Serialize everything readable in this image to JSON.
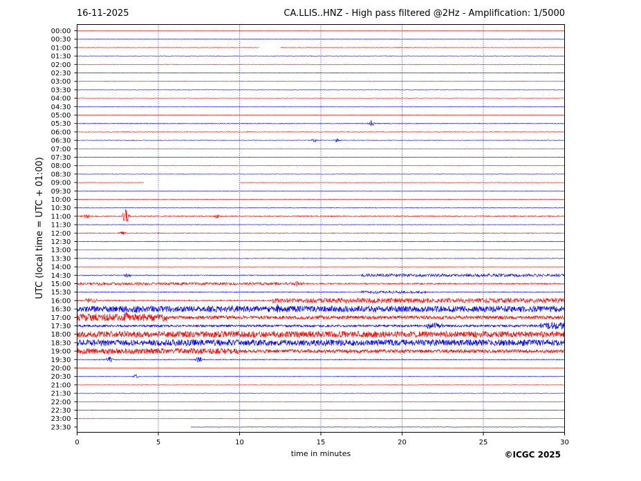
{
  "header": {
    "date": "16-11-2025",
    "title": "CA.LLIS..HNZ - High pass filtered @2Hz - Amplification: 1/5000"
  },
  "footer": {
    "copyright": "©ICGC 2025"
  },
  "colors": {
    "odd_trace": "#ff0000",
    "even_trace": "#0000ff",
    "grid": "#00008b"
  },
  "chart_data": {
    "type": "line",
    "title": "CA.LLIS..HNZ - High pass filtered @2Hz - Amplification: 1/5000",
    "xlabel": "time in minutes",
    "ylabel": "UTC (local time = UTC + 01:00)",
    "xlim": [
      0,
      30
    ],
    "x_ticks": [
      "0",
      "5",
      "10",
      "15",
      "20",
      "25",
      "30"
    ],
    "grid": "vertical dotted at 5-minute intervals",
    "rows": [
      {
        "label": "00:00",
        "color": "red",
        "noise": 0.3
      },
      {
        "label": "00:30",
        "color": "blue",
        "noise": 0.3
      },
      {
        "label": "01:00",
        "color": "red",
        "noise": 0.3,
        "gaps": [
          [
            11.2,
            12.5
          ]
        ]
      },
      {
        "label": "01:30",
        "color": "blue",
        "noise": 0.3
      },
      {
        "label": "02:00",
        "color": "red",
        "noise": 0.3
      },
      {
        "label": "02:30",
        "color": "blue",
        "noise": 0.3
      },
      {
        "label": "03:00",
        "color": "red",
        "noise": 0.3
      },
      {
        "label": "03:30",
        "color": "blue",
        "noise": 0.3
      },
      {
        "label": "04:00",
        "color": "red",
        "noise": 0.3
      },
      {
        "label": "04:30",
        "color": "blue",
        "noise": 0.3
      },
      {
        "label": "05:00",
        "color": "red",
        "noise": 0.3
      },
      {
        "label": "05:30",
        "color": "blue",
        "noise": 0.5,
        "events": [
          [
            18.1,
            5
          ]
        ]
      },
      {
        "label": "06:00",
        "color": "red",
        "noise": 0.4
      },
      {
        "label": "06:30",
        "color": "blue",
        "noise": 0.4,
        "events": [
          [
            14.6,
            3
          ],
          [
            16.0,
            3
          ]
        ]
      },
      {
        "label": "07:00",
        "color": "red",
        "noise": 0.3
      },
      {
        "label": "07:30",
        "color": "blue",
        "noise": 0.3
      },
      {
        "label": "08:00",
        "color": "red",
        "noise": 0.3
      },
      {
        "label": "08:30",
        "color": "blue",
        "noise": 0.3
      },
      {
        "label": "09:00",
        "color": "red",
        "noise": 0.3,
        "gaps": [
          [
            4.1,
            10.0
          ]
        ]
      },
      {
        "label": "09:30",
        "color": "blue",
        "noise": 0.3
      },
      {
        "label": "10:00",
        "color": "red",
        "noise": 0.4
      },
      {
        "label": "10:30",
        "color": "blue",
        "noise": 0.4
      },
      {
        "label": "11:00",
        "color": "red",
        "noise": 0.8,
        "events": [
          [
            0.6,
            4
          ],
          [
            3.0,
            12
          ],
          [
            8.6,
            3
          ]
        ]
      },
      {
        "label": "11:30",
        "color": "blue",
        "noise": 0.4
      },
      {
        "label": "12:00",
        "color": "red",
        "noise": 0.5,
        "events": [
          [
            2.8,
            3
          ]
        ]
      },
      {
        "label": "12:30",
        "color": "blue",
        "noise": 0.4
      },
      {
        "label": "13:00",
        "color": "red",
        "noise": 0.3
      },
      {
        "label": "13:30",
        "color": "blue",
        "noise": 0.4
      },
      {
        "label": "14:00",
        "color": "red",
        "noise": 0.3
      },
      {
        "label": "14:30",
        "color": "blue",
        "noise": 0.6,
        "bands": [
          [
            17.5,
            30,
            2.2
          ]
        ],
        "events": [
          [
            3.1,
            4
          ]
        ]
      },
      {
        "label": "15:00",
        "color": "red",
        "noise": 1.0,
        "bands": [
          [
            0,
            14,
            2.0
          ]
        ],
        "events": [
          [
            13.5,
            5
          ]
        ]
      },
      {
        "label": "15:30",
        "color": "blue",
        "noise": 0.6,
        "bands": [
          [
            17.5,
            21.5,
            2.0
          ]
        ]
      },
      {
        "label": "16:00",
        "color": "red",
        "noise": 1.0,
        "bands": [
          [
            0.5,
            1.2,
            3.5
          ],
          [
            12,
            30,
            3.5
          ]
        ]
      },
      {
        "label": "16:30",
        "color": "blue",
        "noise": 4.5,
        "events": [
          [
            3.6,
            9
          ],
          [
            12.3,
            8
          ]
        ]
      },
      {
        "label": "17:00",
        "color": "red",
        "noise": 2.5,
        "bands": [
          [
            0,
            5.5,
            5.5
          ]
        ],
        "events": [
          [
            3.0,
            9
          ]
        ]
      },
      {
        "label": "17:30",
        "color": "blue",
        "noise": 1.5,
        "bands": [
          [
            21.5,
            22.5,
            4.5
          ],
          [
            28.5,
            30,
            5
          ]
        ]
      },
      {
        "label": "18:00",
        "color": "red",
        "noise": 4.5
      },
      {
        "label": "18:30",
        "color": "blue",
        "noise": 4.5
      },
      {
        "label": "19:00",
        "color": "red",
        "noise": 2.5,
        "bands": [
          [
            0,
            10,
            4
          ]
        ]
      },
      {
        "label": "19:30",
        "color": "blue",
        "noise": 0.6,
        "events": [
          [
            2.0,
            5
          ],
          [
            7.5,
            5
          ]
        ]
      },
      {
        "label": "20:00",
        "color": "red",
        "noise": 0.3
      },
      {
        "label": "20:30",
        "color": "blue",
        "noise": 0.4,
        "events": [
          [
            3.6,
            3
          ]
        ]
      },
      {
        "label": "21:00",
        "color": "red",
        "noise": 0.3
      },
      {
        "label": "21:30",
        "color": "blue",
        "noise": 0.3
      },
      {
        "label": "22:00",
        "color": "red",
        "noise": 0.3
      },
      {
        "label": "22:30",
        "color": "blue",
        "noise": 0.3
      },
      {
        "label": "23:00",
        "color": "red",
        "noise": 0.3
      },
      {
        "label": "23:30",
        "color": "blue",
        "noise": 0.3,
        "gaps": [
          [
            0,
            7.0
          ]
        ]
      }
    ]
  }
}
